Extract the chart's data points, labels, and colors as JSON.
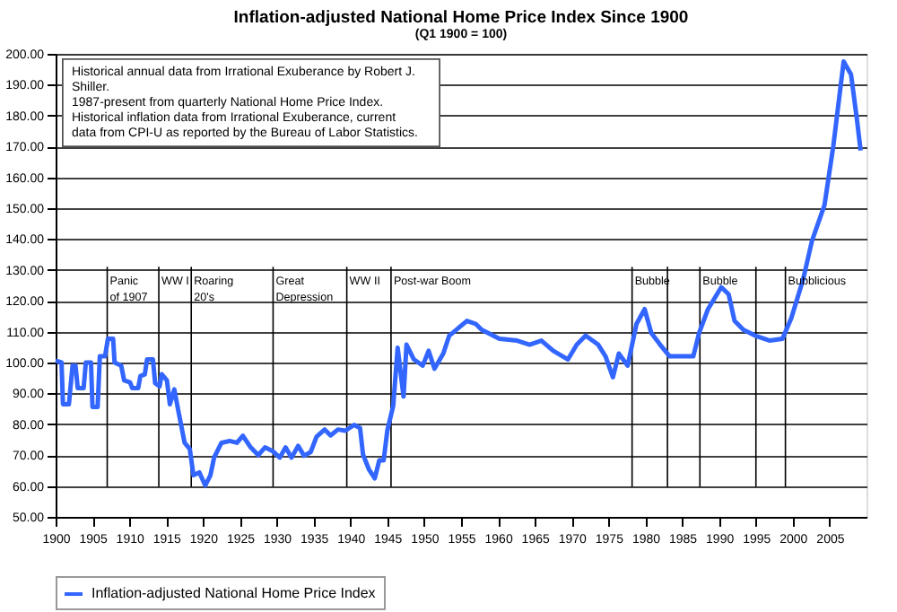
{
  "chart_data": {
    "type": "line",
    "title": "Inflation-adjusted National Home Price Index  Since 1900",
    "subtitle": "(Q1 1900 = 100)",
    "annotations": [
      "Historical annual data from Irrational Exuberance by Robert J. Shiller.",
      "1987-present from quarterly National Home Price Index.",
      "Historical inflation data from Irrational Exuberance, current data from CPI-U as reported by the Bureau of Labor Statistics."
    ],
    "x": [
      1900,
      1900.8,
      1901,
      1901.8,
      1902.3,
      1902.7,
      1903,
      1903.8,
      1904.1,
      1904.8,
      1905,
      1905.7,
      1906,
      1906.7,
      1907.1,
      1907.8,
      1908,
      1908.9,
      1909.3,
      1910.1,
      1910.4,
      1911.2,
      1911.5,
      1912.1,
      1912.4,
      1913.2,
      1913.5,
      1914.1,
      1914.4,
      1915.1,
      1915.5,
      1916.1,
      1916.7,
      1917.5,
      1918.2,
      1918.7,
      1919.5,
      1920.3,
      1921,
      1921.5,
      1922.5,
      1923.6,
      1924.6,
      1925.4,
      1926.4,
      1927.5,
      1928.4,
      1929.5,
      1930.4,
      1931.2,
      1932,
      1932.9,
      1933.7,
      1934.6,
      1935.4,
      1936.5,
      1937.3,
      1938.3,
      1939.3,
      1940.5,
      1941.3,
      1941.7,
      1942.5,
      1943.3,
      1943.9,
      1944.5,
      1945,
      1945.8,
      1946.4,
      1947.2,
      1947.6,
      1948.6,
      1949.8,
      1950.6,
      1951.4,
      1952.6,
      1953.4,
      1955.8,
      1957,
      1957.8,
      1960.2,
      1962.6,
      1964.3,
      1965.9,
      1967.5,
      1969.5,
      1970.7,
      1971.9,
      1973.6,
      1974.6,
      1975.6,
      1976.4,
      1977.6,
      1978.8,
      1979.9,
      1980.8,
      1982,
      1983.3,
      1984.9,
      1986.5,
      1987.3,
      1988.5,
      1990.3,
      1991.3,
      1992.1,
      1993.3,
      1994.9,
      1996.9,
      1998.6,
      1999.8,
      2001.4,
      2002.6,
      2004.3,
      2005.5,
      2006.9,
      2007.9,
      2008.7,
      2009.2
    ],
    "series": [
      {
        "name": "Inflation-adjusted National Home Price Index",
        "color": "#3366ff",
        "values": [
          100.6,
          100,
          86.5,
          86.5,
          99,
          99,
          91.7,
          91.7,
          100,
          100,
          85.6,
          85.6,
          102,
          102,
          107.7,
          107.7,
          100,
          99,
          94.2,
          93.6,
          91.7,
          91.7,
          95.6,
          96.2,
          101,
          101,
          93.3,
          92.3,
          96.2,
          94.2,
          86.5,
          91.3,
          83.7,
          74,
          72,
          63.5,
          64.4,
          60.2,
          63.5,
          69.2,
          74,
          74.6,
          74,
          76.3,
          72.7,
          70,
          72.5,
          71.2,
          69.2,
          72.5,
          69.2,
          73,
          69.8,
          71,
          76,
          78.3,
          76.4,
          78.3,
          77.9,
          79.8,
          78.8,
          70.2,
          65.4,
          62.5,
          68.3,
          68.3,
          78,
          86,
          104.8,
          89,
          105.8,
          101,
          99,
          103.8,
          98,
          103,
          108.7,
          113.5,
          112.5,
          110.6,
          107.7,
          107.1,
          105.8,
          107.1,
          103.8,
          101,
          105.8,
          108.7,
          105.8,
          102,
          95.2,
          102.9,
          99,
          112.5,
          117.3,
          109.6,
          105.8,
          102,
          102,
          102,
          109.6,
          117.3,
          124.4,
          122.1,
          113.5,
          110.6,
          108.7,
          107.1,
          107.7,
          114.4,
          126.9,
          139.4,
          151,
          170.2,
          197.5,
          193.3,
          178.8,
          168.7
        ]
      }
    ],
    "xlim": [
      1900,
      2010
    ],
    "ylim": [
      50,
      200
    ],
    "xticks": [
      1900,
      1905,
      1910,
      1915,
      1920,
      1925,
      1930,
      1935,
      1940,
      1945,
      1950,
      1955,
      1960,
      1965,
      1970,
      1975,
      1980,
      1985,
      1990,
      1995,
      2000,
      2005
    ],
    "yticks": [
      {
        "value": 50,
        "label": "50.00"
      },
      {
        "value": 60,
        "label": "60.00"
      },
      {
        "value": 70,
        "label": "70.00"
      },
      {
        "value": 80,
        "label": "80.00"
      },
      {
        "value": 90,
        "label": "90.00"
      },
      {
        "value": 100,
        "label": "100.00"
      },
      {
        "value": 110,
        "label": "110.00"
      },
      {
        "value": 120,
        "label": "120.00"
      },
      {
        "value": 130,
        "label": "130.00"
      },
      {
        "value": 140,
        "label": "140.00"
      },
      {
        "value": 150,
        "label": "150.00"
      },
      {
        "value": 160,
        "label": "160.00"
      },
      {
        "value": 170,
        "label": "170.00"
      },
      {
        "value": 180,
        "label": "180.00"
      },
      {
        "value": 190,
        "label": "190.00"
      },
      {
        "value": 200,
        "label": "200.00"
      }
    ],
    "ref_lines": [
      {
        "axis": "x",
        "value": 1907,
        "label": "Panic of 1907",
        "color": "#000000"
      },
      {
        "axis": "x",
        "value": 1914,
        "label": "WW I",
        "color": "#000000"
      },
      {
        "axis": "x",
        "value": 1918.4,
        "label": "Roaring 20's",
        "color": "#000000"
      },
      {
        "axis": "x",
        "value": 1929.5,
        "label": "Great Depression",
        "color": "#000000"
      },
      {
        "axis": "x",
        "value": 1939.5,
        "label": "WW II",
        "color": "#000000"
      },
      {
        "axis": "x",
        "value": 1945.5,
        "label": "Post-war Boom",
        "color": "#000000"
      },
      {
        "axis": "x",
        "value": 1978.2,
        "label": "Bubble",
        "color": "#000000"
      },
      {
        "axis": "x",
        "value": 1983,
        "label": null,
        "color": "#000000"
      },
      {
        "axis": "x",
        "value": 1987.4,
        "label": "Bubble",
        "color": "#000000"
      },
      {
        "axis": "x",
        "value": 1995,
        "label": null,
        "color": "#000000"
      },
      {
        "axis": "x",
        "value": 1999,
        "label": "Bubblicious",
        "color": "#000000"
      }
    ],
    "grid": "y",
    "legend": "bottom",
    "marker": "none",
    "line_style": "solid"
  }
}
